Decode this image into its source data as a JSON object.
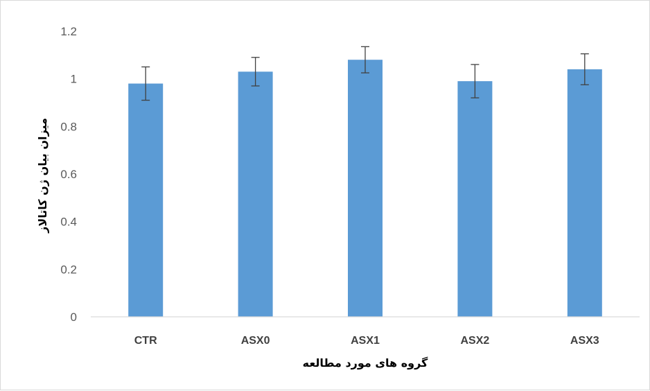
{
  "chart_data": {
    "type": "bar",
    "categories": [
      "CTR",
      "ASX0",
      "ASX1",
      "ASX2",
      "ASX3"
    ],
    "values": [
      0.98,
      1.03,
      1.08,
      0.99,
      1.04
    ],
    "error": [
      0.07,
      0.06,
      0.055,
      0.07,
      0.065
    ],
    "title": "",
    "xlabel": "گروه های مورد مطالعه",
    "ylabel": "میزان بیان ژن کاتالاز",
    "ylim": [
      0,
      1.2
    ],
    "yticks": [
      "0",
      "0.2",
      "0.4",
      "0.6",
      "0.8",
      "1",
      "1.2"
    ],
    "grid": false,
    "legend": "none",
    "colors": {
      "bar": "#5b9bd5",
      "error": "#404040",
      "axis": "#d9d9d9"
    }
  }
}
